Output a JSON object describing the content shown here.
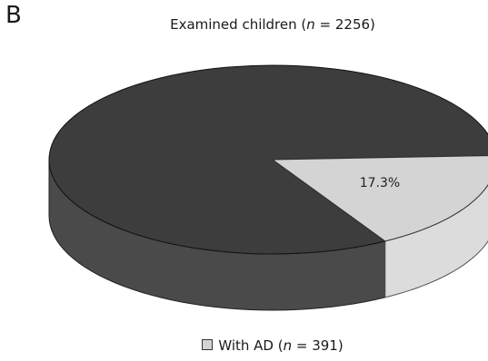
{
  "panel_label": "B",
  "chart_data": {
    "type": "pie",
    "title_prefix": "Examined children (",
    "title_n_symbol": "n",
    "title_suffix": " = 2256)",
    "total": 2256,
    "slices": [
      {
        "name": "",
        "count": 1865,
        "percent": 82.7,
        "color": "#3d3d3d",
        "side_color": "#4a4a4a"
      },
      {
        "name": "With AD",
        "count": 391,
        "percent": 17.3,
        "label": "17.3%",
        "color": "#d4d4d4",
        "side_color": "#dcdcdc"
      }
    ],
    "legend": {
      "label_prefix": "With AD (",
      "n_symbol": "n",
      "label_suffix": " = 391)",
      "placement": "bottom"
    }
  }
}
